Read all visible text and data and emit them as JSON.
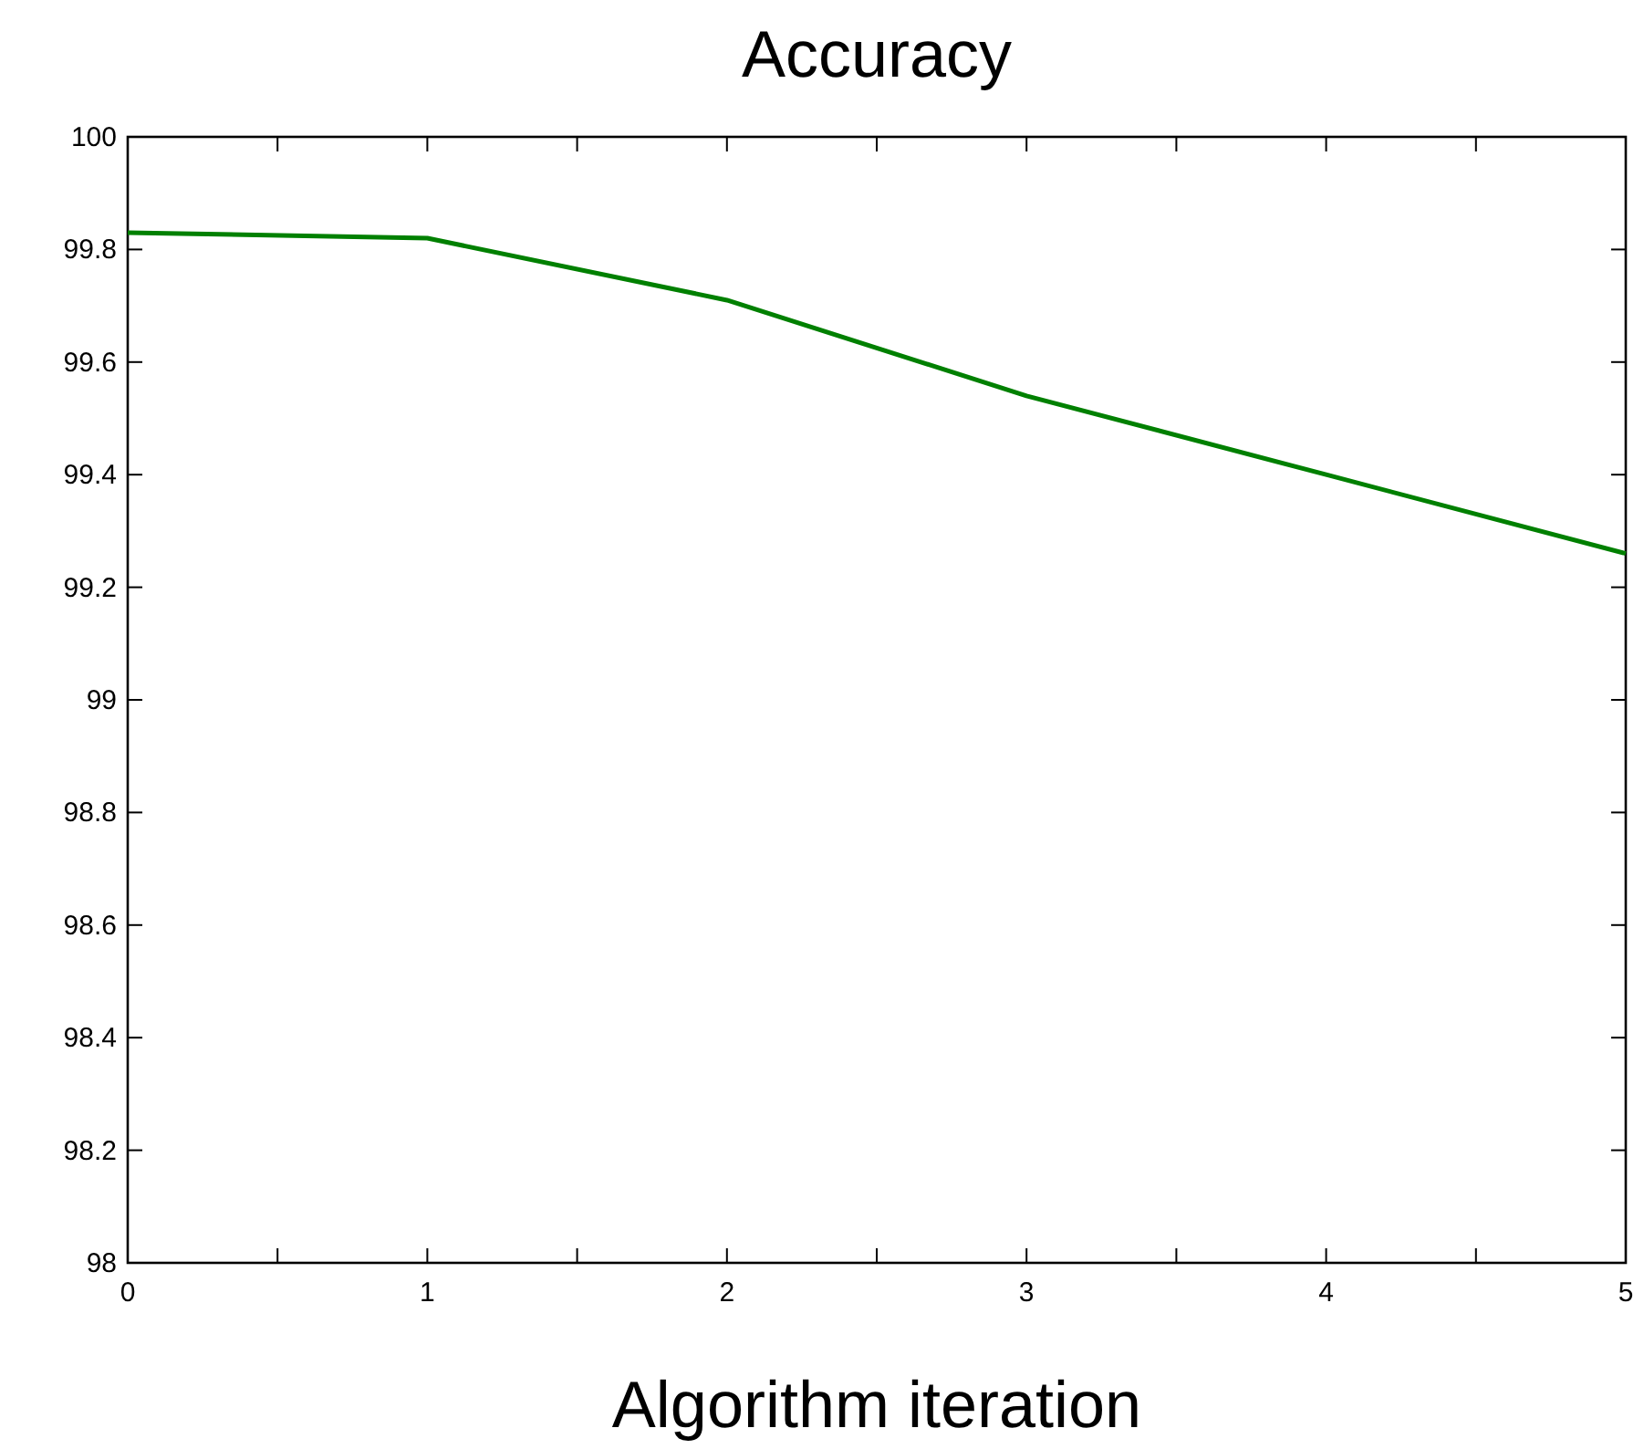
{
  "chart_data": {
    "type": "line",
    "title": "Accuracy",
    "xlabel": "Algorithm iteration",
    "x": [
      0,
      1,
      2,
      3,
      4,
      5
    ],
    "series": [
      {
        "color": "#008000",
        "values": [
          99.83,
          99.82,
          99.71,
          99.54,
          99.4,
          99.26
        ]
      }
    ],
    "xlim": [
      0,
      5
    ],
    "xticks": [
      0,
      {
        "value": 0.5,
        "label": null
      },
      1,
      {
        "value": 1.5,
        "label": null
      },
      2,
      {
        "value": 2.5,
        "label": null
      },
      3,
      {
        "value": 3.5,
        "label": null
      },
      4,
      {
        "value": 4.5,
        "label": null
      },
      5
    ],
    "ylim": [
      98,
      100
    ],
    "yticks": [
      98,
      98.2,
      98.4,
      98.6,
      98.8,
      99,
      99.2,
      99.4,
      99.6,
      99.8,
      100
    ],
    "grid": false,
    "marker": "none",
    "line_style": "solid"
  }
}
